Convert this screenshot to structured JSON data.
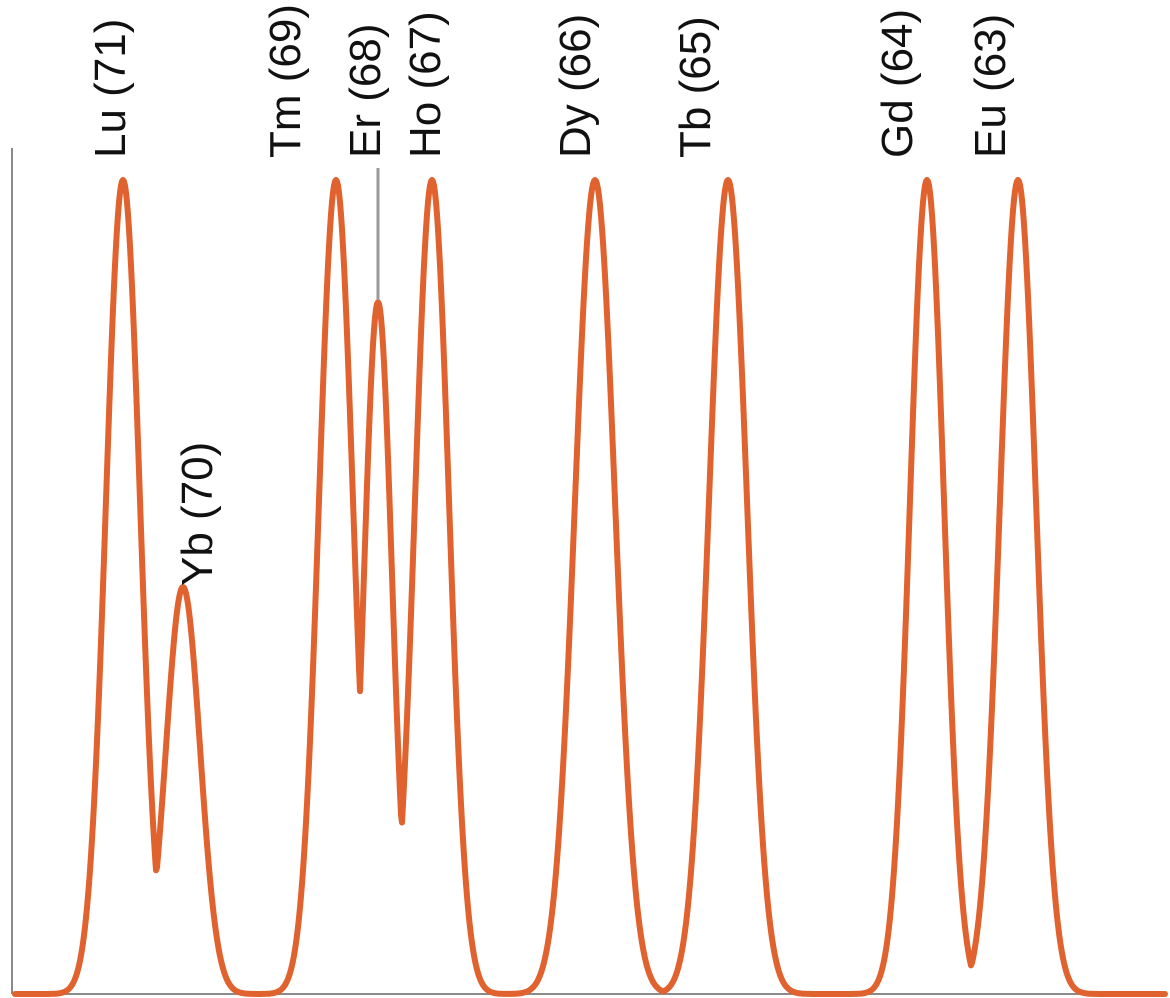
{
  "chart_data": {
    "type": "line",
    "series": [
      {
        "peaks": [
          {
            "label": "Lu (71)",
            "height": 1.0
          },
          {
            "label": "Yb (70)",
            "height": 0.5
          },
          {
            "label": "Tm (69)",
            "height": 1.0
          },
          {
            "label": "Er (68)",
            "height": 0.85
          },
          {
            "label": "Ho (67)",
            "height": 1.0
          },
          {
            "label": "Dy (66)",
            "height": 1.0
          },
          {
            "label": "Tb (65)",
            "height": 1.0
          },
          {
            "label": "Gd (64)",
            "height": 1.0
          },
          {
            "label": "Eu (63)",
            "height": 1.0
          }
        ]
      }
    ],
    "ylim": [
      0,
      1
    ],
    "colors": {
      "trace": "#e0622e",
      "axis": "#8a8a8a",
      "leader": "#9a9a9a",
      "label": "#111111"
    }
  }
}
